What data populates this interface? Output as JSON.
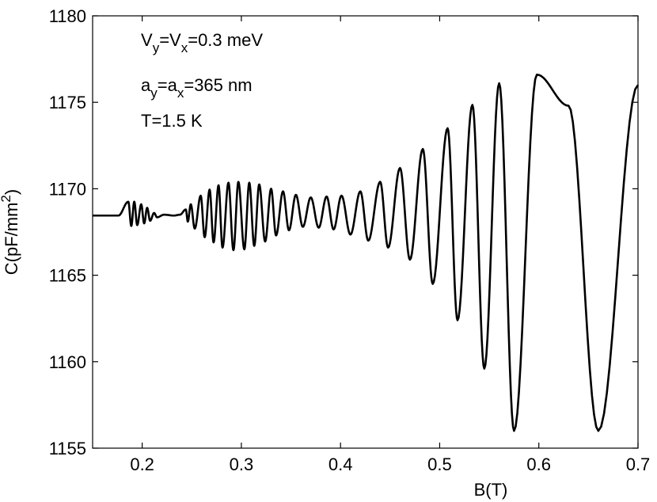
{
  "chart_data": {
    "type": "line",
    "xlabel": "B(T)",
    "ylabel_main": "C(pF/mm",
    "ylabel_sup": "2",
    "ylabel_close": ")",
    "xlim": [
      0.15,
      0.7
    ],
    "ylim": [
      1155,
      1180
    ],
    "xticks": [
      "0.2",
      "0.3",
      "0.4",
      "0.5",
      "0.6",
      "0.7"
    ],
    "yticks": [
      "1155",
      "1160",
      "1165",
      "1170",
      "1175",
      "1180"
    ],
    "grid": false,
    "annotations": {
      "line1": {
        "v1": "V",
        "s1": "y",
        "eq1": "=V",
        "s2": "x",
        "rest": "=0.3 meV"
      },
      "line2": {
        "v1": "a",
        "s1": "y",
        "eq1": "=a",
        "s2": "x",
        "rest": "=365 nm"
      },
      "line3": "T=1.5 K"
    },
    "series": [
      {
        "color": "#000000",
        "extrema": [
          [
            0.15,
            1168.45
          ],
          [
            0.176,
            1168.45
          ],
          [
            0.186,
            1169.25
          ],
          [
            0.189,
            1167.85
          ],
          [
            0.192,
            1169.25
          ],
          [
            0.195,
            1167.9
          ],
          [
            0.199,
            1169.1
          ],
          [
            0.202,
            1168.0
          ],
          [
            0.205,
            1168.9
          ],
          [
            0.208,
            1168.15
          ],
          [
            0.212,
            1168.6
          ],
          [
            0.215,
            1168.35
          ],
          [
            0.222,
            1168.5
          ],
          [
            0.232,
            1168.45
          ],
          [
            0.238,
            1168.5
          ],
          [
            0.244,
            1168.8
          ],
          [
            0.246,
            1168.1
          ],
          [
            0.249,
            1169.1
          ],
          [
            0.253,
            1167.7
          ],
          [
            0.259,
            1169.6
          ],
          [
            0.263,
            1167.2
          ],
          [
            0.268,
            1169.95
          ],
          [
            0.272,
            1166.9
          ],
          [
            0.277,
            1170.2
          ],
          [
            0.281,
            1166.6
          ],
          [
            0.287,
            1170.35
          ],
          [
            0.292,
            1166.45
          ],
          [
            0.297,
            1170.4
          ],
          [
            0.303,
            1166.5
          ],
          [
            0.308,
            1170.35
          ],
          [
            0.313,
            1166.7
          ],
          [
            0.318,
            1170.25
          ],
          [
            0.324,
            1166.95
          ],
          [
            0.33,
            1170.0
          ],
          [
            0.335,
            1167.3
          ],
          [
            0.342,
            1169.85
          ],
          [
            0.348,
            1167.6
          ],
          [
            0.355,
            1169.65
          ],
          [
            0.362,
            1167.8
          ],
          [
            0.37,
            1169.5
          ],
          [
            0.378,
            1167.75
          ],
          [
            0.386,
            1169.55
          ],
          [
            0.393,
            1167.65
          ],
          [
            0.401,
            1169.6
          ],
          [
            0.41,
            1167.35
          ],
          [
            0.42,
            1169.85
          ],
          [
            0.428,
            1167.0
          ],
          [
            0.44,
            1170.4
          ],
          [
            0.448,
            1166.6
          ],
          [
            0.46,
            1171.2
          ],
          [
            0.47,
            1165.9
          ],
          [
            0.483,
            1172.3
          ],
          [
            0.493,
            1164.5
          ],
          [
            0.508,
            1173.5
          ],
          [
            0.518,
            1162.4
          ],
          [
            0.533,
            1174.85
          ],
          [
            0.545,
            1159.6
          ],
          [
            0.56,
            1176.1
          ],
          [
            0.575,
            1156.0
          ],
          [
            0.598,
            1176.6
          ],
          [
            0.63,
            1174.8
          ],
          [
            0.66,
            1156.0
          ],
          [
            0.7,
            1176.0
          ]
        ]
      }
    ]
  }
}
